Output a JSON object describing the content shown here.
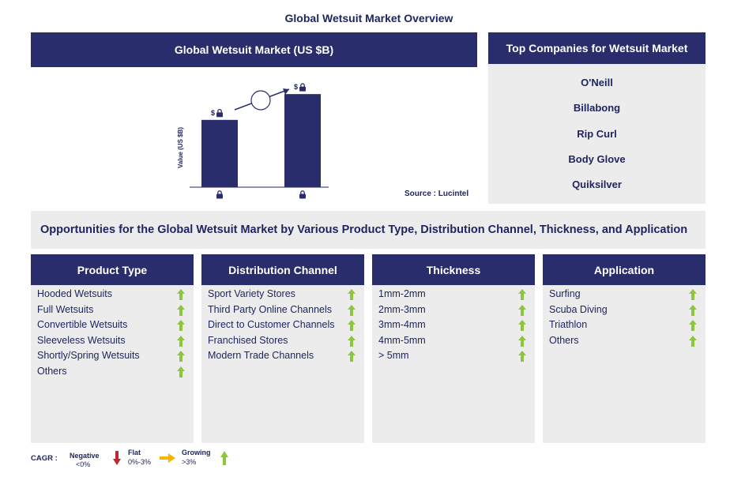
{
  "page_title": "Global Wetsuit Market Overview",
  "market_panel": {
    "title": "Global Wetsuit Market (US $B)",
    "source": "Source : Lucintel",
    "bar_label_prefix": "$"
  },
  "chart_data": {
    "type": "bar",
    "title": "Global Wetsuit Market (US $B)",
    "ylabel": "Value (US $B)",
    "categories": [
      "",
      ""
    ],
    "values": [
      0.6,
      0.83
    ],
    "value_labels": [
      "$",
      "$"
    ],
    "values_locked": true,
    "ylim": [
      0,
      1
    ],
    "grid": false,
    "growth_arrow": true,
    "colors": {
      "bar": "#2a2d6b",
      "accent": "#2a2d6b"
    }
  },
  "companies": {
    "title": "Top Companies for Wetsuit Market",
    "items": [
      "O'Neill",
      "Billabong",
      "Rip Curl",
      "Body Glove",
      "Quiksilver"
    ]
  },
  "opportunities_title": "Opportunities for the Global Wetsuit Market by Various Product Type, Distribution Channel, Thickness, and Application",
  "segments": [
    {
      "title": "Product Type",
      "items": [
        "Hooded Wetsuits",
        "Full Wetsuits",
        "Convertible Wetsuits",
        "Sleeveless Wetsuits",
        "Shortly/Spring Wetsuits",
        "Others"
      ]
    },
    {
      "title": "Distribution Channel",
      "items": [
        "Sport Variety Stores",
        "Third Party Online Channels",
        "Direct to Customer Channels",
        "Franchised Stores",
        "Modern Trade Channels"
      ]
    },
    {
      "title": "Thickness",
      "items": [
        "1mm-2mm",
        "2mm-3mm",
        "3mm-4mm",
        "4mm-5mm",
        "> 5mm"
      ]
    },
    {
      "title": "Application",
      "items": [
        "Surfing",
        "Scuba Diving",
        "Triathlon",
        "Others"
      ]
    }
  ],
  "legend": {
    "label": "CAGR :",
    "negative": {
      "name": "Negative",
      "range": "<0%"
    },
    "flat": {
      "name": "Flat",
      "range": "0%-3%"
    },
    "growing": {
      "name": "Growing",
      "range": ">3%"
    }
  },
  "colors": {
    "navy": "#2a2d6b",
    "panel_gray": "#ececec",
    "growing_green": "#8cc63f",
    "negative_red": "#c1272d",
    "flat_yellow": "#f7b500"
  },
  "icons": {
    "trend": "up-arrow-icon",
    "lock": "lock-icon",
    "growth": "growth-arrow-icon"
  }
}
